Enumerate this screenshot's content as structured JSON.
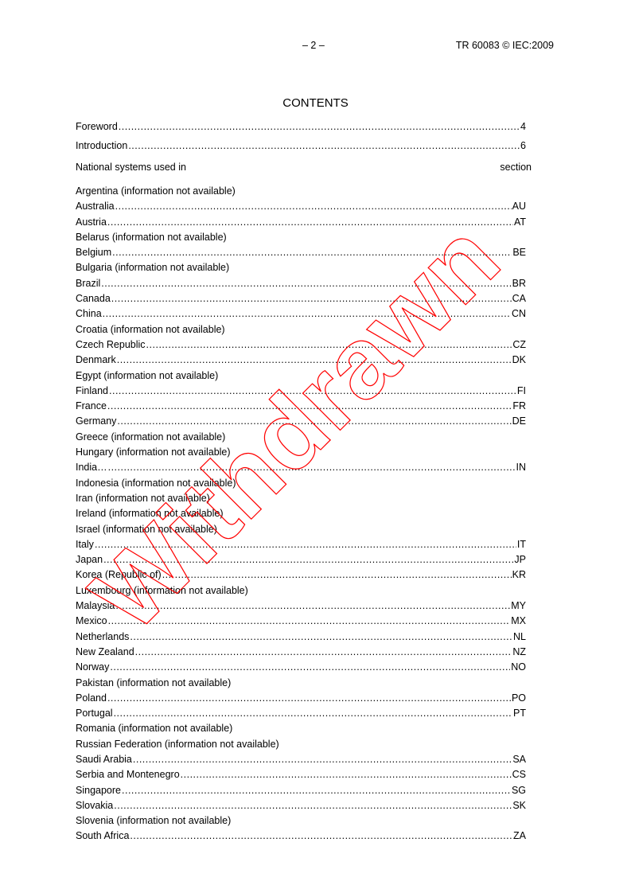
{
  "header": {
    "page_number": "– 2 –",
    "document_id": "TR 60083 © IEC:2009"
  },
  "title": "CONTENTS",
  "front_matter": [
    {
      "label": "Foreword",
      "page": "4"
    },
    {
      "label": "Introduction",
      "page": "6"
    }
  ],
  "national_header": {
    "left": "National systems used in",
    "right": "section"
  },
  "entries": [
    {
      "label": "Argentina (information not available)",
      "code": ""
    },
    {
      "label": "Australia",
      "code": "AU"
    },
    {
      "label": "Austria",
      "code": "AT"
    },
    {
      "label": "Belarus (information not available)",
      "code": ""
    },
    {
      "label": "Belgium",
      "code": "BE"
    },
    {
      "label": "Bulgaria (information not available)",
      "code": ""
    },
    {
      "label": "Brazil ",
      "code": "BR"
    },
    {
      "label": "Canada",
      "code": "CA"
    },
    {
      "label": "China",
      "code": "CN"
    },
    {
      "label": "Croatia (information not available)",
      "code": ""
    },
    {
      "label": "Czech Republic",
      "code": "CZ"
    },
    {
      "label": "Denmark",
      "code": "DK"
    },
    {
      "label": "Egypt (information not available)",
      "code": ""
    },
    {
      "label": "Finland",
      "code": " FI"
    },
    {
      "label": "France",
      "code": "FR"
    },
    {
      "label": "Germany",
      "code": "DE"
    },
    {
      "label": "Greece (information not available)",
      "code": ""
    },
    {
      "label": "Hungary (information not available)",
      "code": ""
    },
    {
      "label": "India… ",
      "code": "IN"
    },
    {
      "label": "Indonesia (information not available)",
      "code": ""
    },
    {
      "label": "Iran (information not available)",
      "code": ""
    },
    {
      "label": "Ireland (information not available)",
      "code": ""
    },
    {
      "label": "Israel (information not available)",
      "code": ""
    },
    {
      "label": "Italy",
      "code": "IT"
    },
    {
      "label": "Japan",
      "code": "JP"
    },
    {
      "label": "Korea (Republic of) ",
      "code": "KR"
    },
    {
      "label": "Luxembourg (information not available)",
      "code": ""
    },
    {
      "label": "Malaysia",
      "code": "MY"
    },
    {
      "label": "Mexico",
      "code": " MX"
    },
    {
      "label": "Netherlands",
      "code": "NL"
    },
    {
      "label": "New Zealand",
      "code": "NZ"
    },
    {
      "label": "Norway",
      "code": "NO"
    },
    {
      "label": "Pakistan (information not available)",
      "code": ""
    },
    {
      "label": "Poland",
      "code": "PO"
    },
    {
      "label": "Portugal",
      "code": "PT"
    },
    {
      "label": "Romania (information not available)",
      "code": ""
    },
    {
      "label": "Russian Federation (information not available)",
      "code": ""
    },
    {
      "label": "Saudi Arabia ",
      "code": "SA"
    },
    {
      "label": "Serbia and Montenegro ",
      "code": "CS"
    },
    {
      "label": "Singapore",
      "code": "SG"
    },
    {
      "label": "Slovakia",
      "code": "SK"
    },
    {
      "label": "Slovenia (information not available)",
      "code": ""
    },
    {
      "label": "South Africa ",
      "code": "ZA"
    }
  ],
  "watermark": {
    "text": "Withdrawn",
    "color": "#ff0000"
  }
}
